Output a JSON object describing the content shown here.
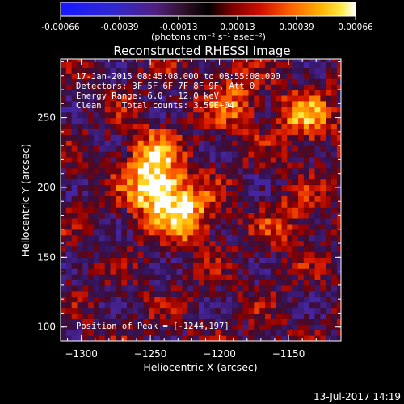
{
  "colorbar": {
    "tick_labels": [
      "-0.00066",
      "-0.00039",
      "-0.00013",
      "0.00013",
      "0.00039",
      "0.00066"
    ],
    "units_label": "(photons cm⁻² s⁻¹ asec⁻²)"
  },
  "chart_data": {
    "type": "heatmap",
    "title": "Reconstructed RHESSI Image",
    "xlabel": "Heliocentric X (arcsec)",
    "ylabel": "Heliocentric Y (arcsec)",
    "xlim": [
      -1315,
      -1112
    ],
    "ylim": [
      90,
      292
    ],
    "x_ticks": [
      -1300,
      -1250,
      -1200,
      -1150
    ],
    "y_ticks": [
      100,
      150,
      200,
      250
    ],
    "x_tick_labels": [
      "−1300",
      "−1250",
      "−1200",
      "−1150"
    ],
    "y_tick_labels": [
      "100",
      "150",
      "200",
      "250"
    ],
    "value_range": [
      -0.00066,
      0.00066
    ],
    "colormap": "RHESSI blue-black-red-yellow-white",
    "annotations": [
      "17-Jan-2015 08:45:08.000 to 08:55:08.000",
      "Detectors: 3F 5F 6F 7F 8F 9F, Att 0",
      "Energy Range: 6.0 - 12.0 keV",
      "Clean    Total counts: 3.59E+04"
    ],
    "peak_label": "Position of Peak = [-1244,197]",
    "peak": [
      -1244,
      197
    ],
    "bright_regions": [
      {
        "x": -1244,
        "y": 197,
        "peak_value": 0.00066
      },
      {
        "x": -1222,
        "y": 180,
        "peak_value": 0.00045
      },
      {
        "x": -1250,
        "y": 222,
        "peak_value": 0.0004
      },
      {
        "x": -1138,
        "y": 250,
        "peak_value": 0.00042
      },
      {
        "x": -1190,
        "y": 262,
        "peak_value": 0.00034
      },
      {
        "x": -1150,
        "y": 175,
        "peak_value": 0.00022
      }
    ]
  },
  "footer": {
    "timestamp": "13-Jul-2017 14:19"
  }
}
